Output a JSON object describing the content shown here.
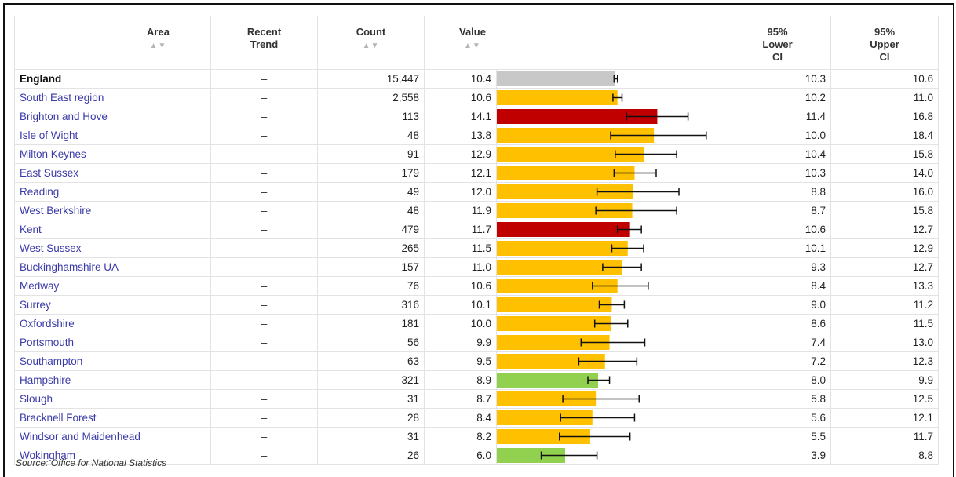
{
  "headers": {
    "area": "Area",
    "trend_line1": "Recent",
    "trend_line2": "Trend",
    "count": "Count",
    "value": "Value",
    "lower_line1": "95%",
    "lower_line2": "Lower",
    "lower_line3": "CI",
    "upper_line1": "95%",
    "upper_line2": "Upper",
    "upper_line3": "CI",
    "sort_icon": "▲▼"
  },
  "colors": {
    "grey": "#c8c8c8",
    "amber": "#ffc000",
    "red": "#c00000",
    "green": "#92d050"
  },
  "chart_data": {
    "type": "table",
    "columns": [
      "Area",
      "Recent Trend",
      "Count",
      "Value",
      "95% Lower CI",
      "95% Upper CI"
    ],
    "rows": [
      {
        "area": "England",
        "trend": "–",
        "count": "15,447",
        "value": 10.4,
        "lower": 10.3,
        "upper": 10.6,
        "status": "grey",
        "bold": true
      },
      {
        "area": "South East region",
        "trend": "–",
        "count": "2,558",
        "value": 10.6,
        "lower": 10.2,
        "upper": 11.0,
        "status": "amber",
        "bold": true
      },
      {
        "area": "Brighton and Hove",
        "trend": "–",
        "count": "113",
        "value": 14.1,
        "lower": 11.4,
        "upper": 16.8,
        "status": "red"
      },
      {
        "area": "Isle of Wight",
        "trend": "–",
        "count": "48",
        "value": 13.8,
        "lower": 10.0,
        "upper": 18.4,
        "status": "amber"
      },
      {
        "area": "Milton Keynes",
        "trend": "–",
        "count": "91",
        "value": 12.9,
        "lower": 10.4,
        "upper": 15.8,
        "status": "amber"
      },
      {
        "area": "East Sussex",
        "trend": "–",
        "count": "179",
        "value": 12.1,
        "lower": 10.3,
        "upper": 14.0,
        "status": "amber"
      },
      {
        "area": "Reading",
        "trend": "–",
        "count": "49",
        "value": 12.0,
        "lower": 8.8,
        "upper": 16.0,
        "status": "amber"
      },
      {
        "area": "West Berkshire",
        "trend": "–",
        "count": "48",
        "value": 11.9,
        "lower": 8.7,
        "upper": 15.8,
        "status": "amber"
      },
      {
        "area": "Kent",
        "trend": "–",
        "count": "479",
        "value": 11.7,
        "lower": 10.6,
        "upper": 12.7,
        "status": "red"
      },
      {
        "area": "West Sussex",
        "trend": "–",
        "count": "265",
        "value": 11.5,
        "lower": 10.1,
        "upper": 12.9,
        "status": "amber"
      },
      {
        "area": "Buckinghamshire UA",
        "trend": "–",
        "count": "157",
        "value": 11.0,
        "lower": 9.3,
        "upper": 12.7,
        "status": "amber"
      },
      {
        "area": "Medway",
        "trend": "–",
        "count": "76",
        "value": 10.6,
        "lower": 8.4,
        "upper": 13.3,
        "status": "amber"
      },
      {
        "area": "Surrey",
        "trend": "–",
        "count": "316",
        "value": 10.1,
        "lower": 9.0,
        "upper": 11.2,
        "status": "amber"
      },
      {
        "area": "Oxfordshire",
        "trend": "–",
        "count": "181",
        "value": 10.0,
        "lower": 8.6,
        "upper": 11.5,
        "status": "amber"
      },
      {
        "area": "Portsmouth",
        "trend": "–",
        "count": "56",
        "value": 9.9,
        "lower": 7.4,
        "upper": 13.0,
        "status": "amber"
      },
      {
        "area": "Southampton",
        "trend": "–",
        "count": "63",
        "value": 9.5,
        "lower": 7.2,
        "upper": 12.3,
        "status": "amber"
      },
      {
        "area": "Hampshire",
        "trend": "–",
        "count": "321",
        "value": 8.9,
        "lower": 8.0,
        "upper": 9.9,
        "status": "green"
      },
      {
        "area": "Slough",
        "trend": "–",
        "count": "31",
        "value": 8.7,
        "lower": 5.8,
        "upper": 12.5,
        "status": "amber"
      },
      {
        "area": "Bracknell Forest",
        "trend": "–",
        "count": "28",
        "value": 8.4,
        "lower": 5.6,
        "upper": 12.1,
        "status": "amber"
      },
      {
        "area": "Windsor and Maidenhead",
        "trend": "–",
        "count": "31",
        "value": 8.2,
        "lower": 5.5,
        "upper": 11.7,
        "status": "amber"
      },
      {
        "area": "Wokingham",
        "trend": "–",
        "count": "26",
        "value": 6.0,
        "lower": 3.9,
        "upper": 8.8,
        "status": "green"
      }
    ],
    "xlim": [
      0,
      20
    ]
  },
  "source": "Source: Office for National Statistics"
}
